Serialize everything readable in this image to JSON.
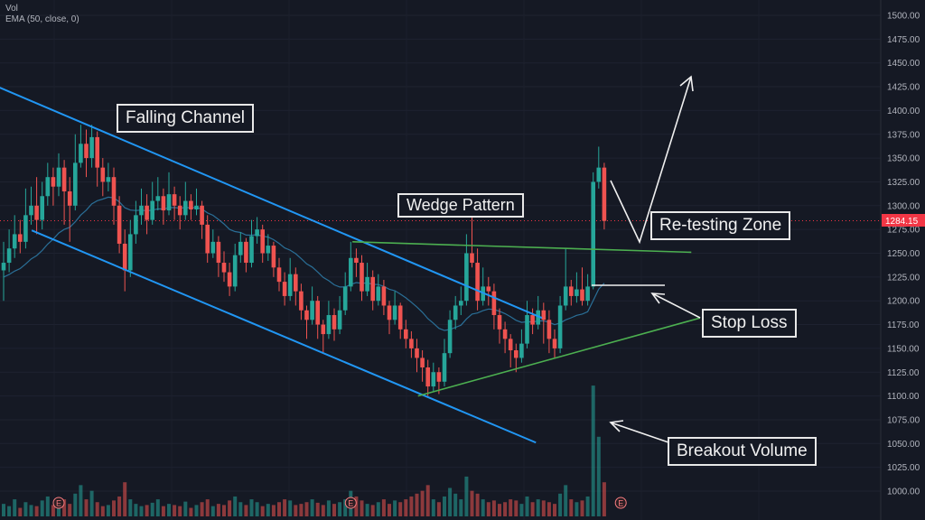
{
  "legend": {
    "vol": "Vol",
    "ema": "EMA (50, close, 0)"
  },
  "annotations": {
    "falling_channel": "Falling Channel",
    "wedge_pattern": "Wedge Pattern",
    "retesting_zone": "Re-testing Zone",
    "stop_loss": "Stop Loss",
    "breakout_volume": "Breakout Volume"
  },
  "colors": {
    "up": "#26a69a",
    "down": "#ef5350",
    "channel": "#2196f3",
    "wedge": "#4caf50",
    "ema": "#2a6f97",
    "background": "#151924",
    "last_price": "#f23645"
  },
  "chart_data": {
    "type": "candlestick",
    "ylim": [
      990,
      1510
    ],
    "yticks": [
      "1500.00",
      "1475.00",
      "1450.00",
      "1425.00",
      "1400.00",
      "1375.00",
      "1350.00",
      "1325.00",
      "1300.00",
      "1275.00",
      "1250.00",
      "1225.00",
      "1200.00",
      "1175.00",
      "1150.00",
      "1125.00",
      "1100.00",
      "1075.00",
      "1050.00",
      "1025.00",
      "1000.00"
    ],
    "last_price": "1284.15",
    "grid": true,
    "ema_period": 50,
    "candles": [
      [
        1232,
        1262,
        1200,
        1240
      ],
      [
        1240,
        1275,
        1230,
        1255
      ],
      [
        1255,
        1290,
        1245,
        1270
      ],
      [
        1270,
        1285,
        1250,
        1262
      ],
      [
        1262,
        1318,
        1255,
        1290
      ],
      [
        1290,
        1320,
        1280,
        1300
      ],
      [
        1300,
        1330,
        1270,
        1285
      ],
      [
        1285,
        1325,
        1275,
        1310
      ],
      [
        1310,
        1345,
        1300,
        1330
      ],
      [
        1330,
        1340,
        1300,
        1320
      ],
      [
        1320,
        1355,
        1310,
        1340
      ],
      [
        1340,
        1348,
        1280,
        1315
      ],
      [
        1315,
        1330,
        1262,
        1300
      ],
      [
        1300,
        1375,
        1295,
        1345
      ],
      [
        1345,
        1385,
        1340,
        1365
      ],
      [
        1365,
        1380,
        1330,
        1350
      ],
      [
        1350,
        1385,
        1340,
        1372
      ],
      [
        1372,
        1378,
        1320,
        1340
      ],
      [
        1340,
        1350,
        1310,
        1325
      ],
      [
        1325,
        1345,
        1315,
        1330
      ],
      [
        1330,
        1340,
        1280,
        1300
      ],
      [
        1300,
        1310,
        1250,
        1260
      ],
      [
        1260,
        1275,
        1210,
        1232
      ],
      [
        1232,
        1285,
        1225,
        1270
      ],
      [
        1270,
        1305,
        1260,
        1290
      ],
      [
        1290,
        1318,
        1280,
        1300
      ],
      [
        1300,
        1312,
        1270,
        1285
      ],
      [
        1285,
        1325,
        1280,
        1305
      ],
      [
        1305,
        1330,
        1295,
        1310
      ],
      [
        1310,
        1318,
        1280,
        1295
      ],
      [
        1295,
        1335,
        1290,
        1312
      ],
      [
        1312,
        1320,
        1285,
        1300
      ],
      [
        1300,
        1310,
        1275,
        1290
      ],
      [
        1290,
        1325,
        1285,
        1305
      ],
      [
        1305,
        1312,
        1285,
        1296
      ],
      [
        1296,
        1318,
        1290,
        1300
      ],
      [
        1300,
        1305,
        1265,
        1280
      ],
      [
        1280,
        1290,
        1240,
        1250
      ],
      [
        1250,
        1275,
        1245,
        1262
      ],
      [
        1262,
        1268,
        1225,
        1240
      ],
      [
        1240,
        1252,
        1220,
        1230
      ],
      [
        1230,
        1240,
        1205,
        1215
      ],
      [
        1215,
        1260,
        1210,
        1248
      ],
      [
        1248,
        1272,
        1240,
        1262
      ],
      [
        1262,
        1266,
        1230,
        1240
      ],
      [
        1240,
        1285,
        1235,
        1268
      ],
      [
        1268,
        1288,
        1260,
        1275
      ],
      [
        1275,
        1280,
        1240,
        1250
      ],
      [
        1250,
        1270,
        1242,
        1258
      ],
      [
        1258,
        1262,
        1225,
        1235
      ],
      [
        1235,
        1245,
        1210,
        1220
      ],
      [
        1220,
        1230,
        1195,
        1205
      ],
      [
        1205,
        1245,
        1200,
        1228
      ],
      [
        1228,
        1235,
        1195,
        1210
      ],
      [
        1210,
        1218,
        1180,
        1190
      ],
      [
        1190,
        1195,
        1160,
        1180
      ],
      [
        1180,
        1215,
        1175,
        1200
      ],
      [
        1200,
        1205,
        1160,
        1175
      ],
      [
        1175,
        1180,
        1145,
        1165
      ],
      [
        1165,
        1200,
        1160,
        1185
      ],
      [
        1185,
        1192,
        1158,
        1170
      ],
      [
        1170,
        1205,
        1165,
        1190
      ],
      [
        1190,
        1230,
        1185,
        1215
      ],
      [
        1215,
        1262,
        1210,
        1245
      ],
      [
        1245,
        1255,
        1225,
        1240
      ],
      [
        1240,
        1248,
        1200,
        1210
      ],
      [
        1210,
        1240,
        1205,
        1225
      ],
      [
        1225,
        1232,
        1190,
        1200
      ],
      [
        1200,
        1228,
        1195,
        1215
      ],
      [
        1215,
        1222,
        1185,
        1195
      ],
      [
        1195,
        1200,
        1165,
        1180
      ],
      [
        1180,
        1210,
        1175,
        1195
      ],
      [
        1195,
        1198,
        1160,
        1170
      ],
      [
        1170,
        1180,
        1150,
        1160
      ],
      [
        1160,
        1168,
        1140,
        1150
      ],
      [
        1150,
        1160,
        1125,
        1140
      ],
      [
        1140,
        1148,
        1115,
        1130
      ],
      [
        1130,
        1138,
        1100,
        1110
      ],
      [
        1110,
        1135,
        1105,
        1125
      ],
      [
        1125,
        1130,
        1102,
        1115
      ],
      [
        1115,
        1160,
        1110,
        1145
      ],
      [
        1145,
        1190,
        1140,
        1180
      ],
      [
        1180,
        1205,
        1170,
        1195
      ],
      [
        1195,
        1215,
        1185,
        1200
      ],
      [
        1200,
        1270,
        1195,
        1250
      ],
      [
        1250,
        1288,
        1235,
        1240
      ],
      [
        1240,
        1255,
        1190,
        1200
      ],
      [
        1200,
        1235,
        1195,
        1215
      ],
      [
        1215,
        1225,
        1195,
        1210
      ],
      [
        1210,
        1218,
        1170,
        1185
      ],
      [
        1185,
        1192,
        1155,
        1170
      ],
      [
        1170,
        1178,
        1145,
        1160
      ],
      [
        1160,
        1165,
        1130,
        1148
      ],
      [
        1148,
        1155,
        1125,
        1140
      ],
      [
        1140,
        1170,
        1135,
        1155
      ],
      [
        1155,
        1200,
        1150,
        1185
      ],
      [
        1185,
        1192,
        1165,
        1175
      ],
      [
        1175,
        1205,
        1170,
        1190
      ],
      [
        1190,
        1198,
        1155,
        1180
      ],
      [
        1180,
        1190,
        1145,
        1160
      ],
      [
        1160,
        1170,
        1140,
        1150
      ],
      [
        1150,
        1205,
        1145,
        1195
      ],
      [
        1195,
        1255,
        1190,
        1215
      ],
      [
        1215,
        1222,
        1195,
        1205
      ],
      [
        1205,
        1230,
        1198,
        1212
      ],
      [
        1212,
        1235,
        1195,
        1200
      ],
      [
        1200,
        1228,
        1195,
        1215
      ],
      [
        1215,
        1335,
        1212,
        1325
      ],
      [
        1325,
        1362,
        1318,
        1340
      ],
      [
        1340,
        1345,
        1275,
        1284
      ]
    ],
    "volume": [
      22,
      18,
      30,
      15,
      25,
      20,
      18,
      28,
      35,
      20,
      24,
      30,
      22,
      40,
      55,
      30,
      45,
      25,
      18,
      20,
      28,
      35,
      60,
      30,
      22,
      18,
      20,
      24,
      30,
      18,
      22,
      20,
      18,
      26,
      15,
      20,
      25,
      30,
      18,
      22,
      20,
      28,
      35,
      25,
      20,
      30,
      25,
      18,
      22,
      20,
      25,
      30,
      28,
      20,
      22,
      25,
      30,
      24,
      20,
      28,
      22,
      25,
      30,
      45,
      35,
      28,
      22,
      20,
      25,
      30,
      22,
      28,
      25,
      30,
      35,
      40,
      45,
      55,
      30,
      25,
      35,
      50,
      40,
      30,
      70,
      45,
      40,
      30,
      25,
      28,
      22,
      25,
      30,
      28,
      22,
      35,
      25,
      30,
      28,
      25,
      22,
      40,
      55,
      30,
      25,
      28,
      35,
      230,
      140,
      60
    ],
    "events": [
      {
        "label": "E",
        "index": 10
      },
      {
        "label": "E",
        "index": 63
      },
      {
        "label": "E",
        "index": 112
      }
    ],
    "trendlines": [
      {
        "kind": "channel-upper",
        "from": [
          -0.7,
          1424
        ],
        "to": [
          97.7,
          1182
        ]
      },
      {
        "kind": "channel-lower",
        "from": [
          5.1,
          1274
        ],
        "to": [
          96.6,
          1051
        ]
      },
      {
        "kind": "wedge-upper",
        "from": [
          63.3,
          1262
        ],
        "to": [
          124.8,
          1251
        ]
      },
      {
        "kind": "wedge-lower",
        "from": [
          75.2,
          1100
        ],
        "to": [
          126.4,
          1182
        ]
      }
    ],
    "stop_loss_level": 1216
  }
}
